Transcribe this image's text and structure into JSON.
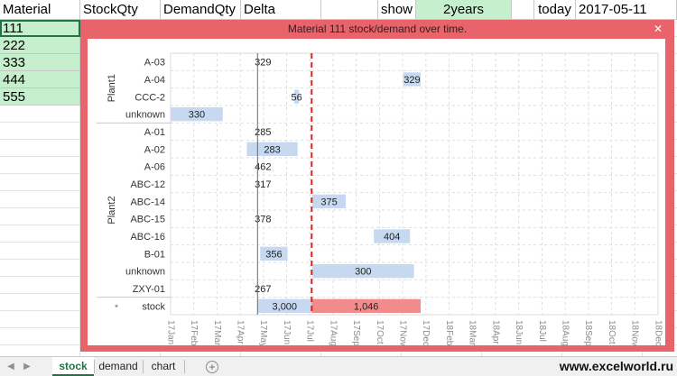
{
  "header": {
    "material": "Material",
    "stockqty": "StockQty",
    "demandqty": "DemandQty",
    "delta": "Delta",
    "blank": "",
    "show_label": "show",
    "show_value": "2years",
    "blank2": "",
    "today_label": "today",
    "today_value": "2017-05-11"
  },
  "materials": [
    "111",
    "222",
    "333",
    "444",
    "555"
  ],
  "popup": {
    "title": "Material 111 stock/demand over time.",
    "close_label": "✕"
  },
  "tabs": {
    "items": [
      "stock",
      "demand",
      "chart"
    ],
    "add_label": "+",
    "active": "stock"
  },
  "watermark": "www.excelworld.ru",
  "colors": {
    "popup_bg": "#e8636a",
    "sheet_green": "#c6efce",
    "bar_blue": "#c6d9f0",
    "bar_red": "#f28b8b",
    "today_line": "#e02020"
  },
  "chart_data": {
    "type": "bar",
    "orientation": "horizontal-timeline",
    "title": "",
    "x_ticks": [
      "17Jan",
      "17Feb",
      "17Mar",
      "17Apr",
      "17May",
      "17Jun",
      "17Jul",
      "17Aug",
      "17Sep",
      "17Oct",
      "17Nov",
      "17Dec",
      "18Feb",
      "18Mar",
      "18Apr",
      "18Jun",
      "18Jul",
      "18Aug",
      "18Sep",
      "18Oct",
      "18Nov",
      "18Dec"
    ],
    "xlim": [
      "2017-01-01",
      "2018-12-31"
    ],
    "today": "2017-05-11",
    "groups": [
      {
        "name": "Plant1",
        "rows": [
          {
            "label": "A-03",
            "value": "329",
            "start": "2017-05-11",
            "end": "2017-05-11"
          },
          {
            "label": "A-04",
            "value": "329",
            "start": "2017-12-15",
            "end": "2018-01-10"
          },
          {
            "label": "CCC-2",
            "value": "56",
            "start": "2017-07-05",
            "end": "2017-07-12"
          },
          {
            "label": "unknown",
            "value": "330",
            "start": "2017-01-01",
            "end": "2017-03-20"
          }
        ]
      },
      {
        "name": "Plant2",
        "rows": [
          {
            "label": "A-01",
            "value": "285",
            "start": "2017-05-11",
            "end": "2017-05-11"
          },
          {
            "label": "A-02",
            "value": "283",
            "start": "2017-04-25",
            "end": "2017-07-10"
          },
          {
            "label": "A-06",
            "value": "462",
            "start": "2017-05-11",
            "end": "2017-05-11"
          },
          {
            "label": "ABC-12",
            "value": "317",
            "start": "2017-05-11",
            "end": "2017-05-11"
          },
          {
            "label": "ABC-14",
            "value": "375",
            "start": "2017-08-01",
            "end": "2017-09-20"
          },
          {
            "label": "ABC-15",
            "value": "378",
            "start": "2017-05-11",
            "end": "2017-05-11"
          },
          {
            "label": "ABC-16",
            "value": "404",
            "start": "2017-11-01",
            "end": "2017-12-25"
          },
          {
            "label": "B-01",
            "value": "356",
            "start": "2017-05-15",
            "end": "2017-06-25"
          },
          {
            "label": "unknown",
            "value": "300",
            "start": "2017-08-01",
            "end": "2017-12-31"
          },
          {
            "label": "ZXY-01",
            "value": "267",
            "start": "2017-05-11",
            "end": "2017-05-11"
          }
        ]
      },
      {
        "name": "",
        "rows": [
          {
            "label": "stock",
            "value": "3,000",
            "start": "2017-05-11",
            "end": "2017-07-31",
            "color": "blue"
          },
          {
            "label": "",
            "value": "1,046",
            "start": "2017-07-31",
            "end": "2018-01-10",
            "color": "red"
          }
        ]
      }
    ]
  }
}
